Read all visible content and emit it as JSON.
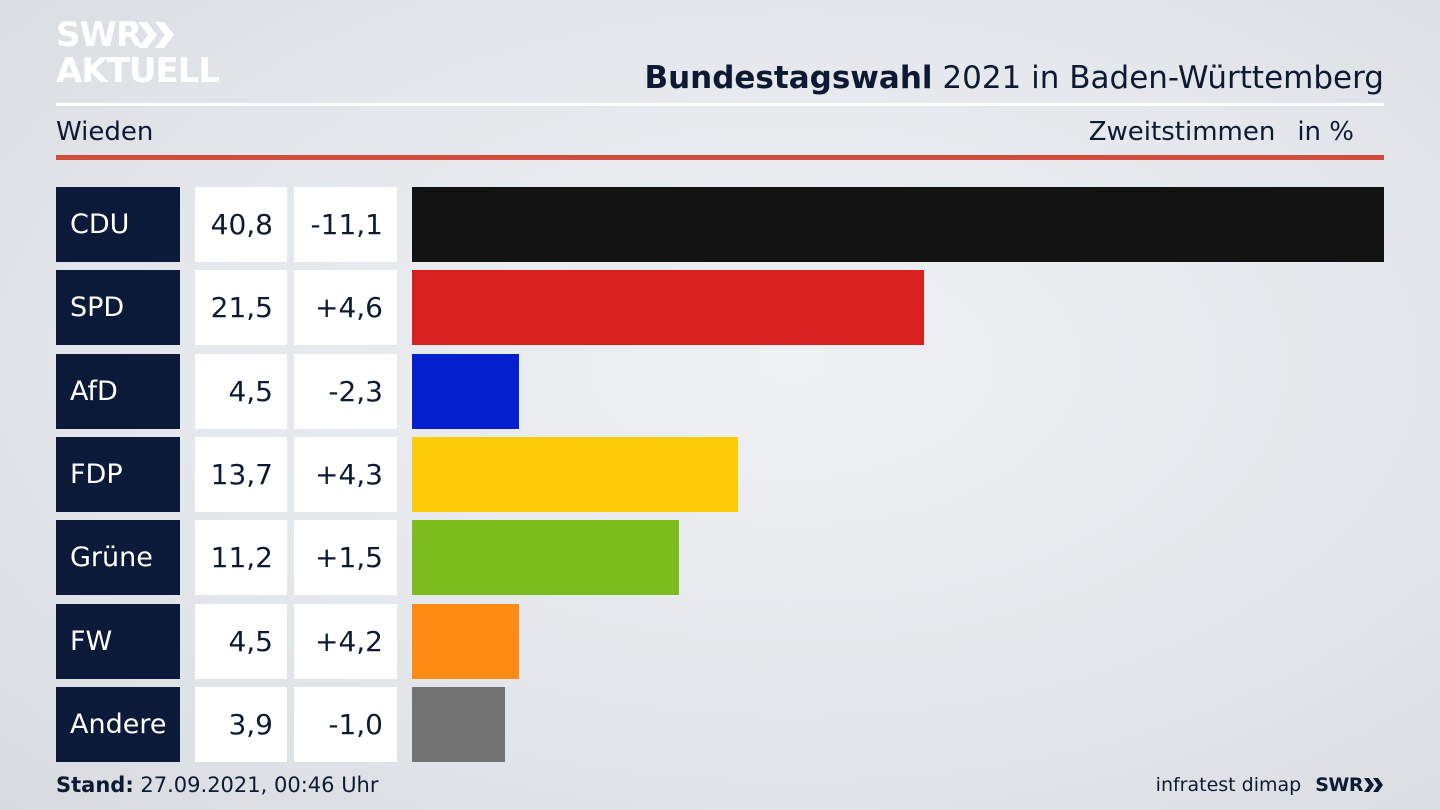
{
  "logo": {
    "line1": "SWR",
    "line2": "AKTUELL"
  },
  "header": {
    "title_bold": "Bundestagswahl",
    "title_rest": "2021 in Baden-Württemberg",
    "place": "Wieden",
    "measure": "Zweitstimmen",
    "unit": "in %"
  },
  "chart_data": {
    "type": "bar",
    "orientation": "horizontal",
    "categories": [
      "CDU",
      "SPD",
      "AfD",
      "FDP",
      "Grüne",
      "FW",
      "Andere"
    ],
    "values": [
      40.8,
      21.5,
      4.5,
      13.7,
      11.2,
      4.5,
      3.9
    ],
    "value_labels": [
      "40,8",
      "21,5",
      "4,5",
      "13,7",
      "11,2",
      "4,5",
      "3,9"
    ],
    "differences": [
      -11.1,
      4.6,
      -2.3,
      4.3,
      1.5,
      4.2,
      -1.0
    ],
    "difference_labels": [
      "-11,1",
      "+4,6",
      "-2,3",
      "+4,3",
      "+1,5",
      "+4,2",
      "-1,0"
    ],
    "colors": [
      "#121212",
      "#d82020",
      "#0420cc",
      "#fdcc08",
      "#7bbd1c",
      "#fd8b14",
      "#737373"
    ],
    "xlim": [
      0,
      40.8
    ],
    "grid": false,
    "legend": "none"
  },
  "footer": {
    "stand_label": "Stand:",
    "stand_value": "27.09.2021, 00:46 Uhr",
    "source": "infratest dimap",
    "brand": "SWR"
  }
}
